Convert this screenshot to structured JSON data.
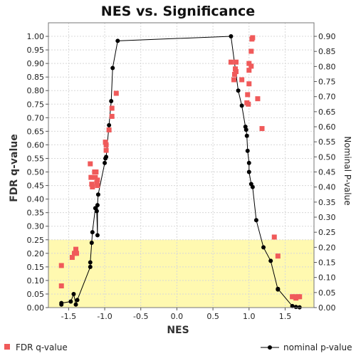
{
  "chart_data": {
    "type": "scatter",
    "title": "NES vs. Significance",
    "xlabel": "NES",
    "ylabel": "FDR q-value",
    "y2label": "Nominal P-value",
    "xlim": [
      -1.78,
      1.9
    ],
    "ylim": [
      0,
      1.05
    ],
    "y2lim": [
      0,
      0.945
    ],
    "xticks": [
      "-1.5",
      "-1.0",
      "-0.5",
      "0.0",
      "0.5",
      "1.0",
      "1.5"
    ],
    "yticks": [
      "0.00",
      "0.05",
      "0.10",
      "0.15",
      "0.20",
      "0.25",
      "0.30",
      "0.35",
      "0.40",
      "0.45",
      "0.50",
      "0.55",
      "0.60",
      "0.65",
      "0.70",
      "0.75",
      "0.80",
      "0.85",
      "0.90",
      "0.95",
      "1.00"
    ],
    "y2ticks": [
      "0.00",
      "0.05",
      "0.10",
      "0.15",
      "0.20",
      "0.25",
      "0.30",
      "0.35",
      "0.40",
      "0.45",
      "0.50",
      "0.55",
      "0.60",
      "0.65",
      "0.70",
      "0.75",
      "0.80",
      "0.85",
      "0.90"
    ],
    "grid": true,
    "highlight_band": {
      "y_from": 0,
      "y_to": 0.25,
      "color": "#fff9b0"
    },
    "legend_position": "bottom",
    "series": [
      {
        "name": "FDR q-value",
        "style": "squares",
        "color": "#f05a5a",
        "axis": "left",
        "points": [
          [
            -1.6,
            0.155
          ],
          [
            -1.6,
            0.08
          ],
          [
            -1.45,
            0.185
          ],
          [
            -1.42,
            0.2
          ],
          [
            -1.4,
            0.215
          ],
          [
            -1.39,
            0.2
          ],
          [
            -1.2,
            0.53
          ],
          [
            -1.19,
            0.48
          ],
          [
            -1.18,
            0.455
          ],
          [
            -1.17,
            0.445
          ],
          [
            -1.14,
            0.5
          ],
          [
            -1.13,
            0.48
          ],
          [
            -1.12,
            0.5
          ],
          [
            -1.11,
            0.46
          ],
          [
            -1.1,
            0.45
          ],
          [
            -1.1,
            0.47
          ],
          [
            -0.99,
            0.61
          ],
          [
            -0.98,
            0.6
          ],
          [
            -0.98,
            0.58
          ],
          [
            -0.94,
            0.655
          ],
          [
            -0.9,
            0.735
          ],
          [
            -0.9,
            0.705
          ],
          [
            -0.84,
            0.79
          ],
          [
            0.75,
            0.905
          ],
          [
            0.79,
            0.84
          ],
          [
            0.8,
            0.86
          ],
          [
            0.81,
            0.88
          ],
          [
            0.82,
            0.905
          ],
          [
            0.82,
            0.87
          ],
          [
            0.9,
            0.84
          ],
          [
            0.97,
            0.755
          ],
          [
            0.98,
            0.785
          ],
          [
            0.99,
            0.75
          ],
          [
            1.0,
            0.875
          ],
          [
            1.0,
            0.825
          ],
          [
            1.0,
            0.9
          ],
          [
            1.03,
            0.945
          ],
          [
            1.03,
            0.89
          ],
          [
            1.04,
            0.99
          ],
          [
            1.05,
            0.995
          ],
          [
            1.12,
            0.77
          ],
          [
            1.18,
            0.66
          ],
          [
            1.35,
            0.26
          ],
          [
            1.4,
            0.19
          ],
          [
            1.6,
            0.04
          ],
          [
            1.63,
            0.04
          ],
          [
            1.65,
            0.035
          ],
          [
            1.68,
            0.04
          ],
          [
            1.7,
            0.04
          ]
        ]
      },
      {
        "name": "nominal p-value",
        "style": "line-dots",
        "color": "#000000",
        "axis": "right",
        "points": [
          [
            -1.6,
            0.01
          ],
          [
            -1.6,
            0.015
          ],
          [
            -1.47,
            0.02
          ],
          [
            -1.43,
            0.045
          ],
          [
            -1.4,
            0.01
          ],
          [
            -1.38,
            0.025
          ],
          [
            -1.2,
            0.135
          ],
          [
            -1.2,
            0.15
          ],
          [
            -1.18,
            0.215
          ],
          [
            -1.17,
            0.25
          ],
          [
            -1.13,
            0.33
          ],
          [
            -1.11,
            0.32
          ],
          [
            -1.1,
            0.24
          ],
          [
            -1.1,
            0.34
          ],
          [
            -1.09,
            0.375
          ],
          [
            -1.0,
            0.48
          ],
          [
            -0.99,
            0.495
          ],
          [
            -0.98,
            0.5
          ],
          [
            -0.94,
            0.605
          ],
          [
            -0.91,
            0.685
          ],
          [
            -0.89,
            0.795
          ],
          [
            -0.82,
            0.885
          ],
          [
            0.75,
            0.9
          ],
          [
            0.85,
            0.72
          ],
          [
            0.9,
            0.67
          ],
          [
            0.95,
            0.6
          ],
          [
            0.96,
            0.59
          ],
          [
            0.97,
            0.57
          ],
          [
            0.98,
            0.52
          ],
          [
            1.0,
            0.48
          ],
          [
            1.0,
            0.45
          ],
          [
            1.03,
            0.41
          ],
          [
            1.05,
            0.4
          ],
          [
            1.1,
            0.29
          ],
          [
            1.2,
            0.2
          ],
          [
            1.3,
            0.155
          ],
          [
            1.4,
            0.06
          ],
          [
            1.4,
            0.062
          ],
          [
            1.6,
            0.005
          ],
          [
            1.65,
            0.002
          ],
          [
            1.7,
            0.001
          ]
        ]
      }
    ]
  }
}
